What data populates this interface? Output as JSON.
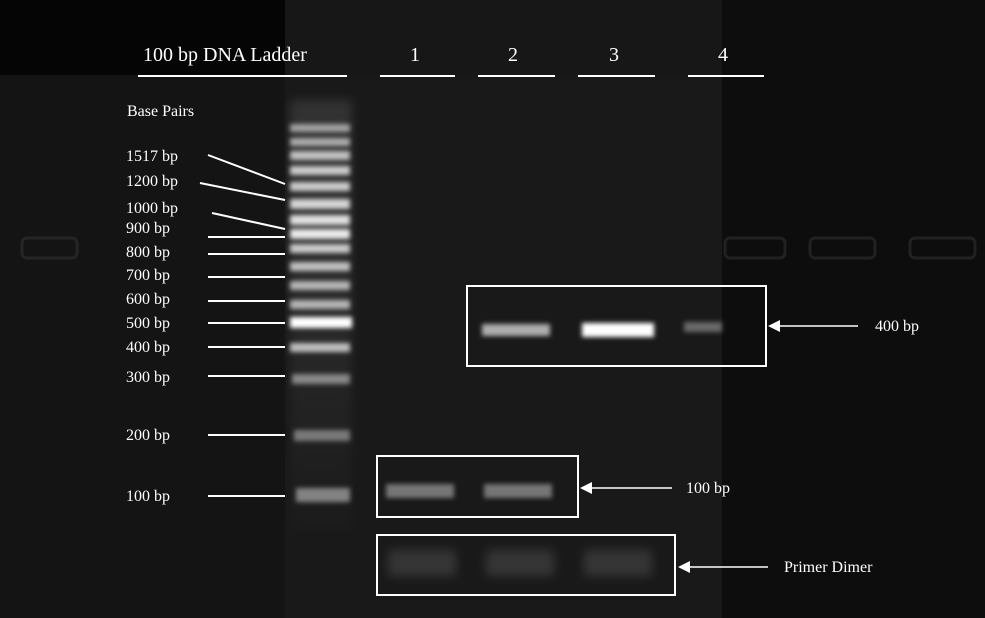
{
  "header": {
    "ladder_title": "100 bp DNA Ladder",
    "lanes": [
      "1",
      "2",
      "3",
      "4"
    ]
  },
  "axis_title": "Base Pairs",
  "ladder_labels": [
    "1517 bp",
    "1200 bp",
    "1000 bp",
    "900 bp",
    "800 bp",
    "700 bp",
    "600 bp",
    "500 bp",
    "400 bp",
    "300 bp",
    "200 bp",
    "100 bp"
  ],
  "annotations": {
    "band_400": "400 bp",
    "band_100": "100 bp",
    "primer_dimer": "Primer Dimer"
  },
  "colors": {
    "background": "#000000",
    "gel": "#151515",
    "band": "#ffffff",
    "annotation": "#ffffff"
  },
  "band_intensity": {
    "lane_1": [
      0,
      0.45,
      0.25
    ],
    "lane_2": [
      0.65,
      0.45,
      0.25
    ],
    "lane_3": [
      1.0,
      0,
      0.25
    ],
    "lane_4": [
      0.35,
      0,
      0
    ]
  }
}
